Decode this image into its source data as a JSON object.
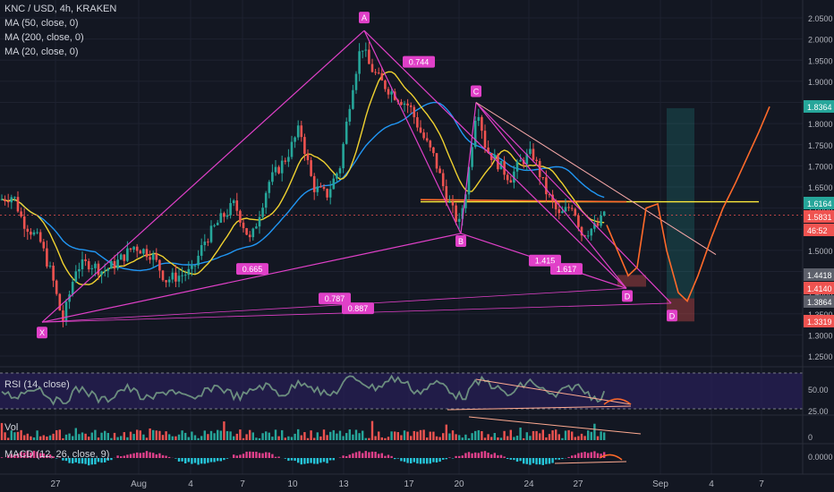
{
  "legend": {
    "title": "KNC / USD, 4h, KRAKEN",
    "ma1": "MA (50, close, 0)",
    "ma2": "MA (200, close, 0)",
    "ma3": "MA (20, close, 0)"
  },
  "panels": {
    "rsi": "RSI (14, close)",
    "vol": "Vol",
    "macd": "MACD (12, 26, close, 9)"
  },
  "colors": {
    "bg": "#131722",
    "up": "#26a69a",
    "down": "#ef5350",
    "pattern": "#e040c8",
    "ma50": "#2196f3",
    "ma200": "#f0d230",
    "ma20": "#f0d230",
    "forecast": "#ff6a2a",
    "rsi": "#6c8e7f"
  },
  "price_axis": {
    "ticks": [
      "2.0500",
      "2.0000",
      "1.9500",
      "1.9000",
      "1.8500",
      "1.8000",
      "1.7500",
      "1.7000",
      "1.6500",
      "1.6000",
      "1.5500",
      "1.5000",
      "1.4500",
      "1.4000",
      "1.3500",
      "1.3000",
      "1.2500"
    ],
    "badges": [
      {
        "text": "1.8364",
        "color": "#26a69a"
      },
      {
        "text": "1.6164",
        "color": "#26a69a"
      },
      {
        "text": "1.5831",
        "color": "#ef5350"
      },
      {
        "text": "46:52",
        "color": "#ef5350"
      },
      {
        "text": "1.4418",
        "color": "#5d606b"
      },
      {
        "text": "1.4140",
        "color": "#ef5350"
      },
      {
        "text": "1.3864",
        "color": "#5d606b"
      },
      {
        "text": "1.3319",
        "color": "#ef5350"
      }
    ]
  },
  "rsi_axis": [
    "50.00",
    "25.00"
  ],
  "vol_axis": [
    "0"
  ],
  "macd_axis": [
    "0.0000"
  ],
  "time_axis": [
    "27",
    "Aug",
    "4",
    "7",
    "10",
    "13",
    "17",
    "20",
    "24",
    "27",
    "Sep",
    "4",
    "7"
  ],
  "pattern_labels": {
    "X": "X",
    "A": "A",
    "B": "B",
    "C": "C",
    "D1": "D",
    "D2": "D",
    "r1": "0.744",
    "r2": "0.665",
    "r3": "0.787",
    "r4": "0.887",
    "r5": "1.415",
    "r6": "1.617"
  },
  "chart_data": {
    "type": "candlestick",
    "title": "KNC / USD, 4h, KRAKEN",
    "ylim": [
      1.23,
      2.06
    ],
    "harmonic_points": {
      "X": 1.33,
      "A": 2.02,
      "B": 1.54,
      "C": 1.85,
      "D": 1.41
    },
    "fib_ratios": [
      "0.744",
      "0.665",
      "0.787",
      "0.887",
      "1.415",
      "1.617"
    ],
    "horizontal_level": 1.6164,
    "targets": {
      "long_zone": [
        1.3864,
        1.8364
      ],
      "stop": 1.3319,
      "short_box": [
        1.414,
        1.4418
      ]
    },
    "rsi": {
      "upper": 70,
      "lower": 30,
      "mid": 50
    },
    "indicators": [
      "MA (50, close, 0)",
      "MA (200, close, 0)",
      "MA (20, close, 0)"
    ]
  }
}
